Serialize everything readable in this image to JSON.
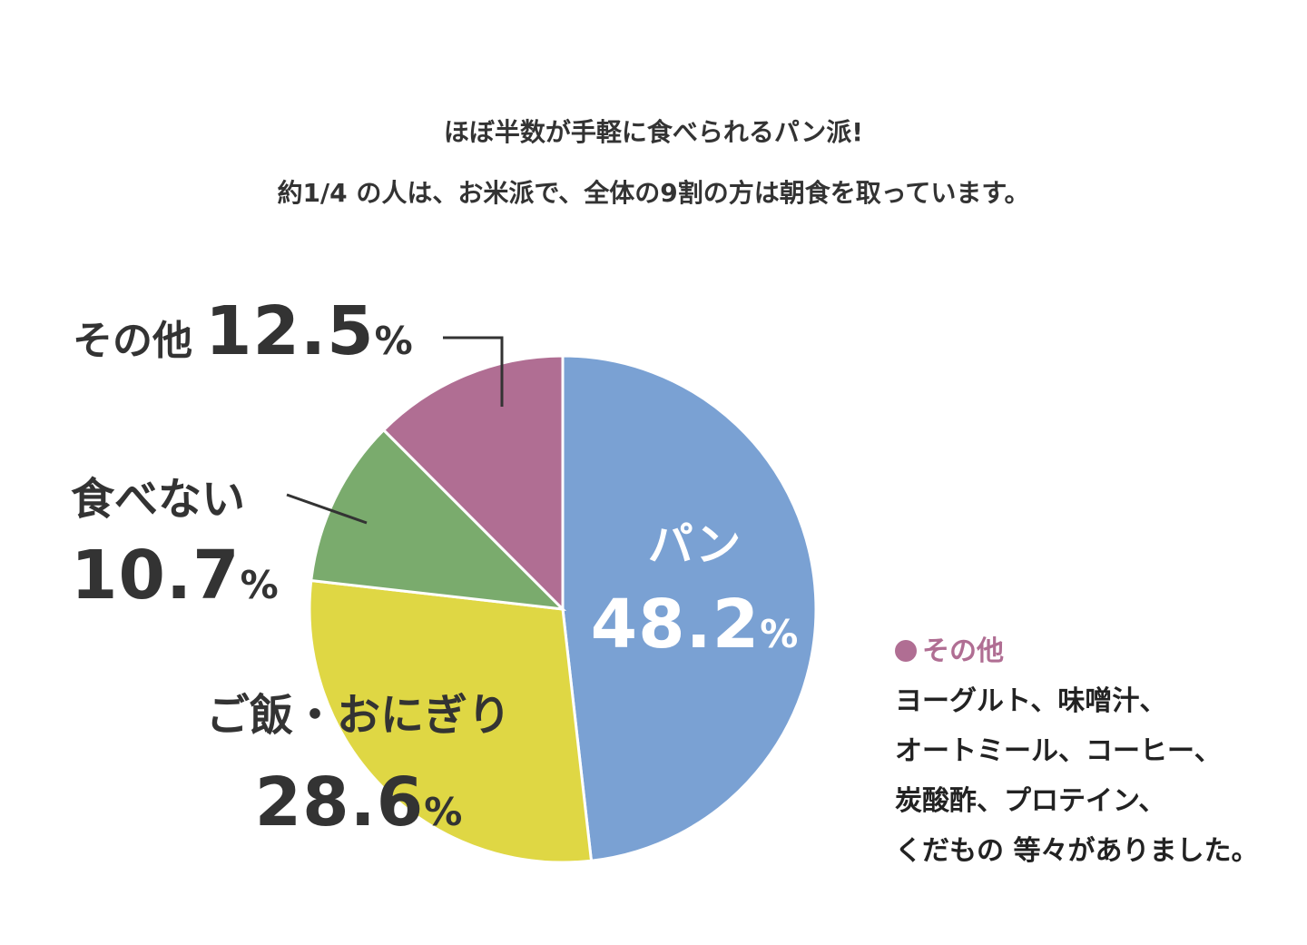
{
  "intro": {
    "line1": "ほぼ半数が手軽に食べられるパン派!",
    "line2": "約1/4 の人は、お米派で、全体の9割の方は朝食を取っています。"
  },
  "chart_data": {
    "type": "pie",
    "slices": [
      {
        "label": "パン",
        "value": 48.2,
        "display": "48.2",
        "color": "#7aa1d3"
      },
      {
        "label": "ご飯・おにぎり",
        "value": 28.6,
        "display": "28.6",
        "color": "#dfd744"
      },
      {
        "label": "食べない",
        "value": 10.7,
        "display": "10.7",
        "color": "#7aab6d"
      },
      {
        "label": "その他",
        "value": 12.5,
        "display": "12.5",
        "color": "#b06e93"
      }
    ],
    "unit": "%",
    "start": "12 o'clock",
    "direction": "clockwise"
  },
  "labels": {
    "bread_name": "パン",
    "bread_value": "48.2",
    "rice_name": "ご飯・おにぎり",
    "rice_value": "28.6",
    "none_name": "食べない",
    "none_value": "10.7",
    "other_name": "その他",
    "other_value": "12.5",
    "percent": "%"
  },
  "note": {
    "heading": "その他",
    "lines": [
      "ヨーグルト、味噌汁、",
      "オートミール、コーヒー、",
      "炭酸酢、プロテイン、",
      "くだもの 等々がありました。"
    ],
    "color": "#b06e93"
  }
}
